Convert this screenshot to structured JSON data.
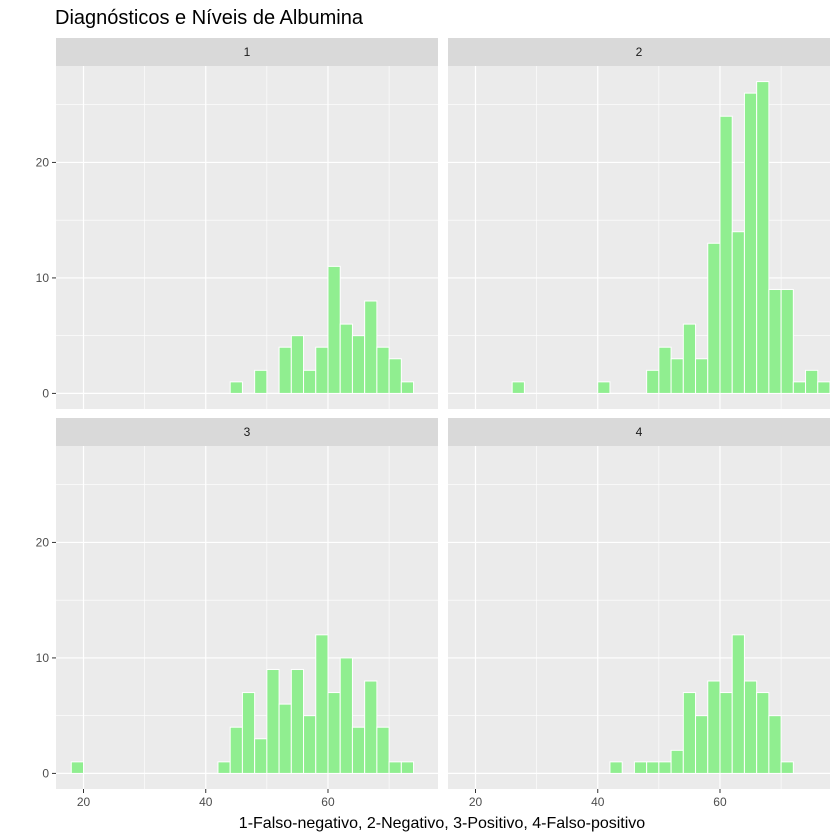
{
  "chart_data": {
    "type": "bar",
    "subtype": "faceted-histogram",
    "title": "Diagnósticos e Níveis de Albumina",
    "xlabel": "1-Falso-negativo, 2-Negativo, 3-Positivo, 4-Falso-positivo",
    "ylabel": "",
    "xlim": [
      15.5,
      78
    ],
    "ylim": [
      -1.35,
      28.35
    ],
    "x_ticks": [
      20,
      40,
      60
    ],
    "x_tick_labels": [
      "20",
      "40",
      "60"
    ],
    "y_ticks": [
      0,
      10,
      20
    ],
    "y_tick_labels": [
      "0",
      "10",
      "20"
    ],
    "bin_width": 2,
    "grid": true,
    "bar_color": "#90EE90",
    "bar_outline": "#ffffff",
    "panel_background": "#ebebeb",
    "strip_background": "#d9d9d9",
    "grid_color": "#ffffff",
    "facets": [
      {
        "label": "1",
        "bins": [
          {
            "x": 45,
            "count": 1
          },
          {
            "x": 49,
            "count": 2
          },
          {
            "x": 53,
            "count": 4
          },
          {
            "x": 55,
            "count": 5
          },
          {
            "x": 57,
            "count": 2
          },
          {
            "x": 59,
            "count": 4
          },
          {
            "x": 61,
            "count": 11
          },
          {
            "x": 63,
            "count": 6
          },
          {
            "x": 65,
            "count": 5
          },
          {
            "x": 67,
            "count": 8
          },
          {
            "x": 69,
            "count": 4
          },
          {
            "x": 71,
            "count": 3
          },
          {
            "x": 73,
            "count": 1
          }
        ]
      },
      {
        "label": "2",
        "bins": [
          {
            "x": 27,
            "count": 1
          },
          {
            "x": 41,
            "count": 1
          },
          {
            "x": 49,
            "count": 2
          },
          {
            "x": 51,
            "count": 4
          },
          {
            "x": 53,
            "count": 3
          },
          {
            "x": 55,
            "count": 6
          },
          {
            "x": 57,
            "count": 3
          },
          {
            "x": 59,
            "count": 13
          },
          {
            "x": 61,
            "count": 24
          },
          {
            "x": 63,
            "count": 14
          },
          {
            "x": 65,
            "count": 26
          },
          {
            "x": 67,
            "count": 27
          },
          {
            "x": 69,
            "count": 9
          },
          {
            "x": 71,
            "count": 9
          },
          {
            "x": 73,
            "count": 1
          },
          {
            "x": 75,
            "count": 2
          },
          {
            "x": 77,
            "count": 1
          }
        ]
      },
      {
        "label": "3",
        "bins": [
          {
            "x": 19,
            "count": 1
          },
          {
            "x": 43,
            "count": 1
          },
          {
            "x": 45,
            "count": 4
          },
          {
            "x": 47,
            "count": 7
          },
          {
            "x": 49,
            "count": 3
          },
          {
            "x": 51,
            "count": 9
          },
          {
            "x": 53,
            "count": 6
          },
          {
            "x": 55,
            "count": 9
          },
          {
            "x": 57,
            "count": 5
          },
          {
            "x": 59,
            "count": 12
          },
          {
            "x": 61,
            "count": 7
          },
          {
            "x": 63,
            "count": 10
          },
          {
            "x": 65,
            "count": 4
          },
          {
            "x": 67,
            "count": 8
          },
          {
            "x": 69,
            "count": 4
          },
          {
            "x": 71,
            "count": 1
          },
          {
            "x": 73,
            "count": 1
          }
        ]
      },
      {
        "label": "4",
        "bins": [
          {
            "x": 43,
            "count": 1
          },
          {
            "x": 47,
            "count": 1
          },
          {
            "x": 49,
            "count": 1
          },
          {
            "x": 51,
            "count": 1
          },
          {
            "x": 53,
            "count": 2
          },
          {
            "x": 55,
            "count": 7
          },
          {
            "x": 57,
            "count": 5
          },
          {
            "x": 59,
            "count": 8
          },
          {
            "x": 61,
            "count": 7
          },
          {
            "x": 63,
            "count": 12
          },
          {
            "x": 65,
            "count": 8
          },
          {
            "x": 67,
            "count": 7
          },
          {
            "x": 69,
            "count": 5
          },
          {
            "x": 71,
            "count": 1
          }
        ]
      }
    ]
  }
}
